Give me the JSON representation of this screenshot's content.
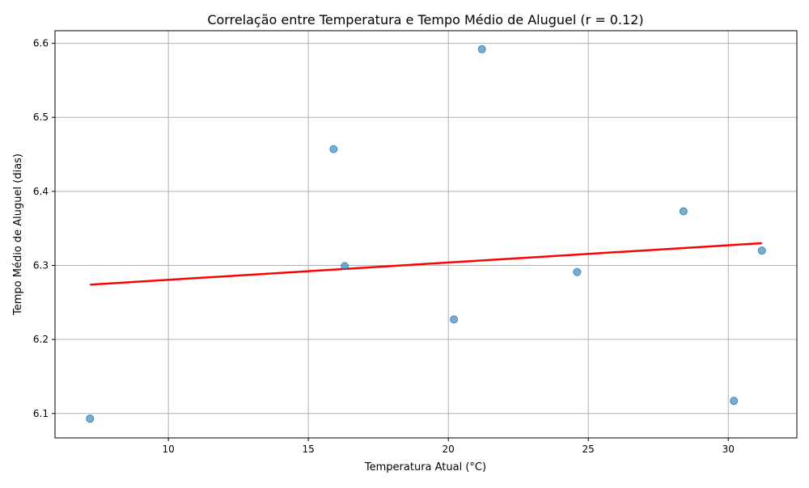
{
  "chart_data": {
    "type": "scatter",
    "title": "Correlação entre Temperatura e Tempo Médio de Aluguel (r = 0.12)",
    "xlabel": "Temperatura Atual (°C)",
    "ylabel": "Tempo Médio de Aluguel (dias)",
    "xlim": [
      5.95,
      32.45
    ],
    "ylim": [
      6.067,
      6.617
    ],
    "x_ticks": [
      10,
      15,
      20,
      25,
      30
    ],
    "y_ticks": [
      6.1,
      6.2,
      6.3,
      6.4,
      6.5,
      6.6
    ],
    "grid": true,
    "points": [
      {
        "x": 7.2,
        "y": 6.093
      },
      {
        "x": 15.9,
        "y": 6.457
      },
      {
        "x": 16.3,
        "y": 6.299
      },
      {
        "x": 20.2,
        "y": 6.227
      },
      {
        "x": 21.2,
        "y": 6.592
      },
      {
        "x": 24.6,
        "y": 6.291
      },
      {
        "x": 28.4,
        "y": 6.373
      },
      {
        "x": 30.2,
        "y": 6.117
      },
      {
        "x": 31.2,
        "y": 6.32
      }
    ],
    "regression_line": {
      "x": [
        7.2,
        31.2
      ],
      "y": [
        6.274,
        6.33
      ]
    },
    "colors": {
      "points": "#1f77b4",
      "regression": "#ff0000",
      "grid": "#b0b0b0"
    }
  }
}
